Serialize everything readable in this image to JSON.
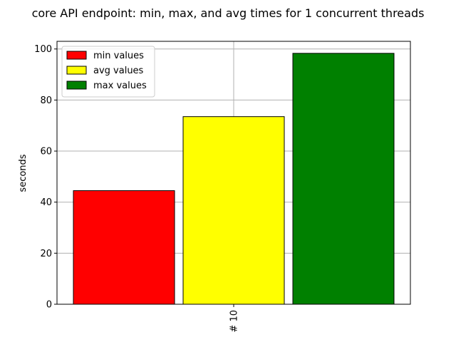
{
  "chart_data": {
    "type": "bar",
    "title": "core API endpoint: min, max, and avg times for 1 concurrent threads",
    "xlabel": "",
    "ylabel": "seconds",
    "categories": [
      "# 10"
    ],
    "ylim": [
      0,
      103
    ],
    "yticks": [
      0,
      20,
      40,
      60,
      80,
      100
    ],
    "grid": true,
    "legend_position": "top-left",
    "series": [
      {
        "name": "min values",
        "color": "#ff0000",
        "values": [
          44.5
        ]
      },
      {
        "name": "avg values",
        "color": "#ffff00",
        "values": [
          73.5
        ]
      },
      {
        "name": "max values",
        "color": "#008000",
        "values": [
          98.3
        ]
      }
    ]
  }
}
